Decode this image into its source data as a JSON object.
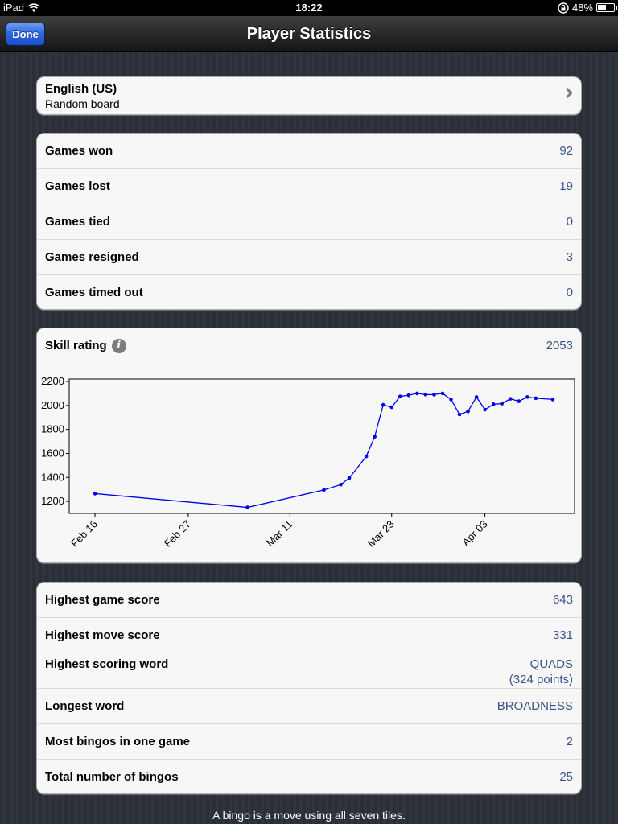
{
  "status": {
    "device": "iPad",
    "time": "18:22",
    "battery": "48%",
    "battery_level": 0.48
  },
  "nav": {
    "title": "Player Statistics",
    "done_label": "Done"
  },
  "dictionary": {
    "language": "English (US)",
    "board": "Random board"
  },
  "games": [
    {
      "label": "Games won",
      "value": "92"
    },
    {
      "label": "Games lost",
      "value": "19"
    },
    {
      "label": "Games tied",
      "value": "0"
    },
    {
      "label": "Games resigned",
      "value": "3"
    },
    {
      "label": "Games timed out",
      "value": "0"
    }
  ],
  "skill": {
    "label": "Skill rating",
    "value": "2053"
  },
  "chart_data": {
    "type": "line",
    "color": "#0000ee",
    "ylim": [
      1100,
      2200
    ],
    "yticks": [
      1200,
      1400,
      1600,
      1800,
      2000,
      2200
    ],
    "xticks": [
      "Feb 16",
      "Feb 27",
      "Mar 11",
      "Mar 23",
      "Apr 03"
    ],
    "xtick_days": [
      0,
      11,
      23,
      35,
      46
    ],
    "series": [
      {
        "days": [
          0,
          18,
          27,
          29,
          30,
          32,
          33,
          34,
          35,
          36,
          37,
          38,
          39,
          40,
          41,
          42,
          43,
          44,
          45,
          46,
          47,
          48,
          49,
          50,
          51,
          52,
          54
        ],
        "values": [
          1265,
          1150,
          1295,
          1340,
          1395,
          1575,
          1740,
          2005,
          1985,
          2075,
          2085,
          2100,
          2090,
          2090,
          2100,
          2050,
          1925,
          1950,
          2070,
          1965,
          2010,
          2015,
          2055,
          2035,
          2070,
          2060,
          2050
        ]
      }
    ],
    "grid": false,
    "legend": "none"
  },
  "records": {
    "highest_game": {
      "label": "Highest game score",
      "value": "643"
    },
    "highest_move": {
      "label": "Highest move score",
      "value": "331"
    },
    "highest_word": {
      "label": "Highest scoring word",
      "value": "QUADS",
      "points": "(324 points)"
    },
    "longest_word": {
      "label": "Longest word",
      "value": "BROADNESS"
    },
    "most_bingos": {
      "label": "Most bingos in one game",
      "value": "2"
    },
    "total_bingos": {
      "label": "Total number of bingos",
      "value": "25"
    }
  },
  "footer": "A bingo is a move using all seven tiles."
}
